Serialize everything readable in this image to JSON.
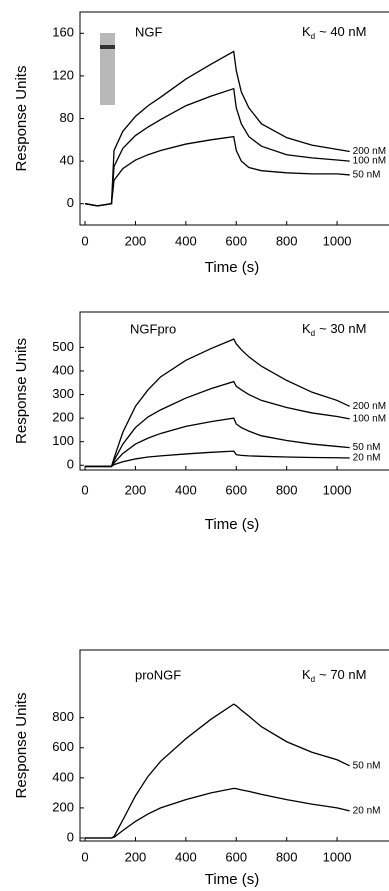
{
  "chart_data": [
    {
      "type": "line",
      "title": "NGF",
      "kd_symbol": "K",
      "kd_subscript": "d",
      "kd_value": "~ 40 nM",
      "xlabel": "Time (s)",
      "ylabel": "Response Units",
      "x": [
        0,
        50,
        105,
        115,
        150,
        200,
        250,
        300,
        400,
        500,
        590,
        600,
        620,
        650,
        700,
        800,
        900,
        1000,
        1050
      ],
      "xlim": [
        -20,
        1206
      ],
      "xticks": [
        0,
        200,
        400,
        600,
        800,
        1000
      ],
      "ylim": [
        -20,
        180
      ],
      "yticks": [
        0,
        40,
        80,
        120,
        160
      ],
      "series": [
        {
          "name": "200 nM",
          "color": "#000000",
          "values": [
            0,
            -2,
            0,
            50,
            68,
            82,
            92,
            100,
            117,
            131,
            143,
            125,
            105,
            90,
            75,
            62,
            55,
            51,
            49
          ]
        },
        {
          "name": "100 nM",
          "color": "#000000",
          "values": [
            0,
            -2,
            0,
            35,
            52,
            64,
            72,
            79,
            92,
            101,
            108,
            90,
            75,
            63,
            54,
            46,
            43,
            41,
            40
          ]
        },
        {
          "name": "50 nM",
          "color": "#000000",
          "values": [
            0,
            -2,
            0,
            22,
            33,
            41,
            46,
            50,
            56,
            60,
            63,
            50,
            40,
            34,
            31,
            29,
            28,
            28,
            27
          ]
        }
      ]
    },
    {
      "type": "line",
      "title": "NGFpro",
      "kd_symbol": "K",
      "kd_subscript": "d",
      "kd_value": "~ 30 nM",
      "xlabel": "Time (s)",
      "ylabel": "Response Units",
      "x": [
        0,
        50,
        105,
        115,
        150,
        200,
        250,
        300,
        400,
        500,
        590,
        600,
        620,
        650,
        700,
        800,
        900,
        1000,
        1050
      ],
      "xlim": [
        -20,
        1206
      ],
      "xticks": [
        0,
        200,
        400,
        600,
        800,
        1000
      ],
      "ylim": [
        -20,
        650
      ],
      "yticks": [
        0,
        100,
        200,
        300,
        400,
        500
      ],
      "series": [
        {
          "name": "200 nM",
          "color": "#000000",
          "values": [
            -5,
            -5,
            -5,
            30,
            140,
            250,
            320,
            375,
            445,
            495,
            535,
            515,
            490,
            460,
            420,
            360,
            310,
            275,
            250
          ]
        },
        {
          "name": "100 nM",
          "color": "#000000",
          "values": [
            -5,
            -5,
            -5,
            20,
            90,
            160,
            205,
            235,
            285,
            325,
            355,
            335,
            320,
            300,
            275,
            245,
            222,
            207,
            197
          ]
        },
        {
          "name": "50 nM",
          "color": "#000000",
          "values": [
            -5,
            -5,
            -5,
            10,
            50,
            90,
            115,
            135,
            165,
            185,
            200,
            175,
            160,
            145,
            125,
            105,
            90,
            80,
            75
          ]
        },
        {
          "name": "20 nM",
          "color": "#000000",
          "values": [
            -5,
            -5,
            -5,
            3,
            15,
            27,
            35,
            40,
            48,
            55,
            60,
            45,
            42,
            40,
            38,
            35,
            33,
            32,
            31
          ]
        }
      ]
    },
    {
      "type": "line",
      "title": "proNGF",
      "kd_symbol": "K",
      "kd_subscript": "d",
      "kd_value": "~ 70 nM",
      "xlabel": "Time (s)",
      "ylabel": "Response Units",
      "x": [
        0,
        50,
        105,
        115,
        150,
        200,
        250,
        300,
        400,
        500,
        590,
        600,
        620,
        650,
        700,
        800,
        900,
        1000,
        1050
      ],
      "xlim": [
        -20,
        1206
      ],
      "xticks": [
        0,
        200,
        400,
        600,
        800,
        1000
      ],
      "ylim": [
        -20,
        1250
      ],
      "yticks": [
        0,
        200,
        400,
        600,
        800
      ],
      "series": [
        {
          "name": "50 nM",
          "color": "#000000",
          "values": [
            0,
            0,
            0,
            10,
            120,
            280,
            410,
            510,
            660,
            790,
            890,
            880,
            850,
            810,
            740,
            640,
            570,
            520,
            480
          ]
        },
        {
          "name": "20 nM",
          "color": "#000000",
          "values": [
            0,
            0,
            0,
            5,
            50,
            110,
            160,
            200,
            255,
            300,
            330,
            328,
            320,
            310,
            290,
            255,
            225,
            200,
            180
          ]
        }
      ]
    }
  ]
}
